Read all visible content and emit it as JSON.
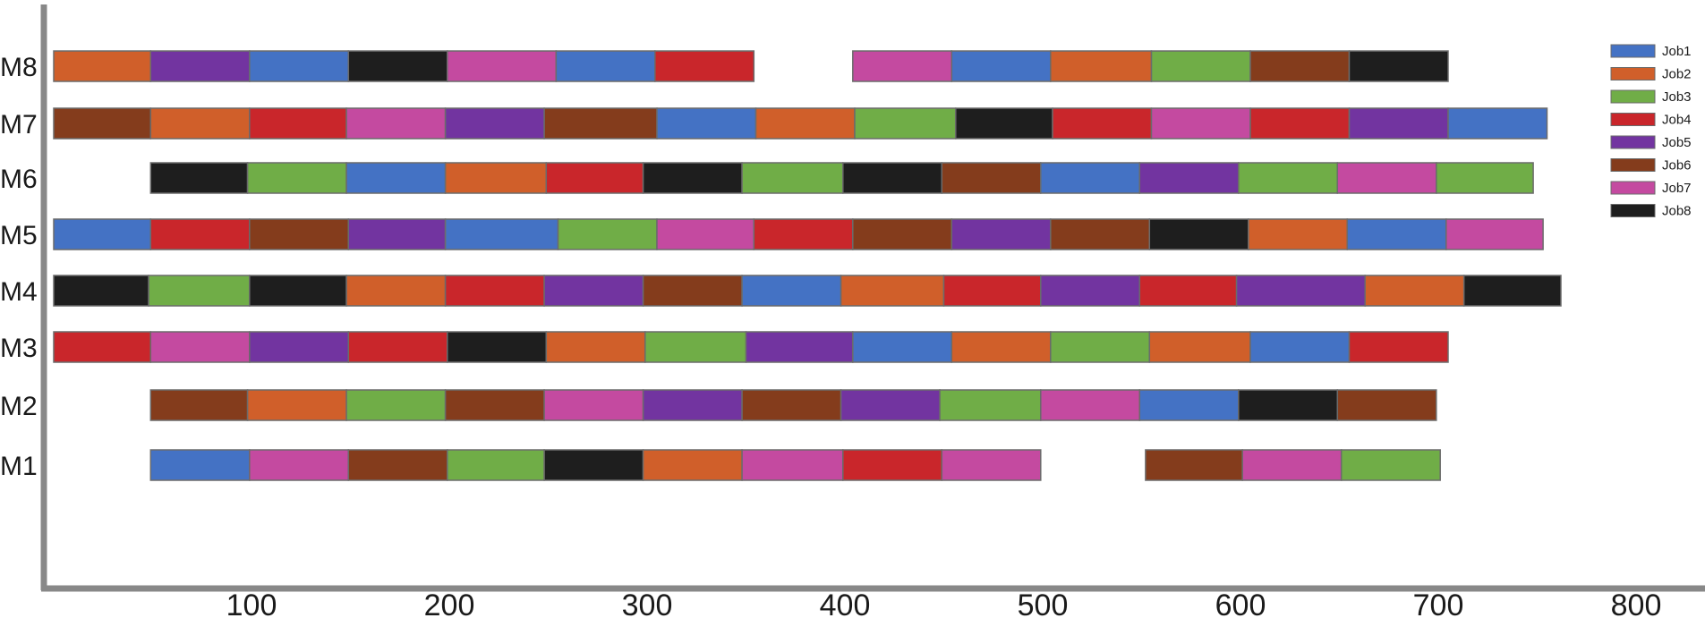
{
  "chart_data": {
    "type": "gantt",
    "title": "",
    "xlabel": "",
    "ylabel": "",
    "xlim": [
      0,
      850
    ],
    "x_ticks": [
      100,
      200,
      300,
      400,
      500,
      600,
      700,
      800
    ],
    "machines": [
      "M1",
      "M2",
      "M3",
      "M4",
      "M5",
      "M6",
      "M7",
      "M8"
    ],
    "legend_placement": "top-right",
    "grid": false,
    "jobs": [
      {
        "name": "Job1",
        "color": "#4472C4"
      },
      {
        "name": "Job2",
        "color": "#D05F2A"
      },
      {
        "name": "Job3",
        "color": "#70AD47"
      },
      {
        "name": "Job4",
        "color": "#C9262B"
      },
      {
        "name": "Job5",
        "color": "#7234A0"
      },
      {
        "name": "Job6",
        "color": "#843C1C"
      },
      {
        "name": "Job7",
        "color": "#C44AA0"
      },
      {
        "name": "Job8",
        "color": "#1E1E1E"
      }
    ],
    "tasks": [
      {
        "machine": "M8",
        "job": "Job2",
        "start": 0,
        "end": 49
      },
      {
        "machine": "M8",
        "job": "Job5",
        "start": 49,
        "end": 99
      },
      {
        "machine": "M8",
        "job": "Job1",
        "start": 99,
        "end": 149
      },
      {
        "machine": "M8",
        "job": "Job8",
        "start": 149,
        "end": 199
      },
      {
        "machine": "M8",
        "job": "Job7",
        "start": 199,
        "end": 254
      },
      {
        "machine": "M8",
        "job": "Job1",
        "start": 254,
        "end": 304
      },
      {
        "machine": "M8",
        "job": "Job4",
        "start": 304,
        "end": 354
      },
      {
        "machine": "M8",
        "job": "Job7",
        "start": 404,
        "end": 454
      },
      {
        "machine": "M8",
        "job": "Job1",
        "start": 454,
        "end": 504
      },
      {
        "machine": "M8",
        "job": "Job2",
        "start": 504,
        "end": 555
      },
      {
        "machine": "M8",
        "job": "Job3",
        "start": 555,
        "end": 605
      },
      {
        "machine": "M8",
        "job": "Job6",
        "start": 605,
        "end": 655
      },
      {
        "machine": "M8",
        "job": "Job8",
        "start": 655,
        "end": 705
      },
      {
        "machine": "M7",
        "job": "Job6",
        "start": 0,
        "end": 49
      },
      {
        "machine": "M7",
        "job": "Job2",
        "start": 49,
        "end": 99
      },
      {
        "machine": "M7",
        "job": "Job4",
        "start": 99,
        "end": 148
      },
      {
        "machine": "M7",
        "job": "Job7",
        "start": 148,
        "end": 198
      },
      {
        "machine": "M7",
        "job": "Job5",
        "start": 198,
        "end": 248
      },
      {
        "machine": "M7",
        "job": "Job6",
        "start": 248,
        "end": 305
      },
      {
        "machine": "M7",
        "job": "Job1",
        "start": 305,
        "end": 355
      },
      {
        "machine": "M7",
        "job": "Job2",
        "start": 355,
        "end": 405
      },
      {
        "machine": "M7",
        "job": "Job3",
        "start": 405,
        "end": 456
      },
      {
        "machine": "M7",
        "job": "Job8",
        "start": 456,
        "end": 505
      },
      {
        "machine": "M7",
        "job": "Job4",
        "start": 505,
        "end": 555
      },
      {
        "machine": "M7",
        "job": "Job7",
        "start": 555,
        "end": 605
      },
      {
        "machine": "M7",
        "job": "Job4",
        "start": 605,
        "end": 655
      },
      {
        "machine": "M7",
        "job": "Job5",
        "start": 655,
        "end": 705
      },
      {
        "machine": "M7",
        "job": "Job1",
        "start": 705,
        "end": 755
      },
      {
        "machine": "M6",
        "job": "Job8",
        "start": 49,
        "end": 98
      },
      {
        "machine": "M6",
        "job": "Job3",
        "start": 98,
        "end": 148
      },
      {
        "machine": "M6",
        "job": "Job1",
        "start": 148,
        "end": 198
      },
      {
        "machine": "M6",
        "job": "Job2",
        "start": 198,
        "end": 249
      },
      {
        "machine": "M6",
        "job": "Job4",
        "start": 249,
        "end": 298
      },
      {
        "machine": "M6",
        "job": "Job8",
        "start": 298,
        "end": 348
      },
      {
        "machine": "M6",
        "job": "Job3",
        "start": 348,
        "end": 399
      },
      {
        "machine": "M6",
        "job": "Job8",
        "start": 399,
        "end": 449
      },
      {
        "machine": "M6",
        "job": "Job6",
        "start": 449,
        "end": 499
      },
      {
        "machine": "M6",
        "job": "Job1",
        "start": 499,
        "end": 549
      },
      {
        "machine": "M6",
        "job": "Job5",
        "start": 549,
        "end": 599
      },
      {
        "machine": "M6",
        "job": "Job3",
        "start": 599,
        "end": 649
      },
      {
        "machine": "M6",
        "job": "Job7",
        "start": 649,
        "end": 699
      },
      {
        "machine": "M6",
        "job": "Job3",
        "start": 699,
        "end": 748
      },
      {
        "machine": "M5",
        "job": "Job1",
        "start": 0,
        "end": 49
      },
      {
        "machine": "M5",
        "job": "Job4",
        "start": 49,
        "end": 99
      },
      {
        "machine": "M5",
        "job": "Job6",
        "start": 99,
        "end": 149
      },
      {
        "machine": "M5",
        "job": "Job5",
        "start": 149,
        "end": 198
      },
      {
        "machine": "M5",
        "job": "Job1",
        "start": 198,
        "end": 255
      },
      {
        "machine": "M5",
        "job": "Job3",
        "start": 255,
        "end": 305
      },
      {
        "machine": "M5",
        "job": "Job7",
        "start": 305,
        "end": 354
      },
      {
        "machine": "M5",
        "job": "Job4",
        "start": 354,
        "end": 404
      },
      {
        "machine": "M5",
        "job": "Job6",
        "start": 404,
        "end": 454
      },
      {
        "machine": "M5",
        "job": "Job5",
        "start": 454,
        "end": 504
      },
      {
        "machine": "M5",
        "job": "Job6",
        "start": 504,
        "end": 554
      },
      {
        "machine": "M5",
        "job": "Job8",
        "start": 554,
        "end": 604
      },
      {
        "machine": "M5",
        "job": "Job2",
        "start": 604,
        "end": 654
      },
      {
        "machine": "M5",
        "job": "Job1",
        "start": 654,
        "end": 704
      },
      {
        "machine": "M5",
        "job": "Job7",
        "start": 704,
        "end": 753
      },
      {
        "machine": "M4",
        "job": "Job8",
        "start": 0,
        "end": 48
      },
      {
        "machine": "M4",
        "job": "Job3",
        "start": 48,
        "end": 99
      },
      {
        "machine": "M4",
        "job": "Job8",
        "start": 99,
        "end": 148
      },
      {
        "machine": "M4",
        "job": "Job2",
        "start": 148,
        "end": 198
      },
      {
        "machine": "M4",
        "job": "Job4",
        "start": 198,
        "end": 248
      },
      {
        "machine": "M4",
        "job": "Job5",
        "start": 248,
        "end": 298
      },
      {
        "machine": "M4",
        "job": "Job6",
        "start": 298,
        "end": 348
      },
      {
        "machine": "M4",
        "job": "Job1",
        "start": 348,
        "end": 398
      },
      {
        "machine": "M4",
        "job": "Job2",
        "start": 398,
        "end": 450
      },
      {
        "machine": "M4",
        "job": "Job4",
        "start": 450,
        "end": 499
      },
      {
        "machine": "M4",
        "job": "Job5",
        "start": 499,
        "end": 549
      },
      {
        "machine": "M4",
        "job": "Job4",
        "start": 549,
        "end": 598
      },
      {
        "machine": "M4",
        "job": "Job5",
        "start": 598,
        "end": 663
      },
      {
        "machine": "M4",
        "job": "Job2",
        "start": 663,
        "end": 713
      },
      {
        "machine": "M4",
        "job": "Job8",
        "start": 713,
        "end": 762
      },
      {
        "machine": "M3",
        "job": "Job4",
        "start": 0,
        "end": 49
      },
      {
        "machine": "M3",
        "job": "Job7",
        "start": 49,
        "end": 99
      },
      {
        "machine": "M3",
        "job": "Job5",
        "start": 99,
        "end": 149
      },
      {
        "machine": "M3",
        "job": "Job4",
        "start": 149,
        "end": 199
      },
      {
        "machine": "M3",
        "job": "Job8",
        "start": 199,
        "end": 249
      },
      {
        "machine": "M3",
        "job": "Job2",
        "start": 249,
        "end": 299
      },
      {
        "machine": "M3",
        "job": "Job3",
        "start": 299,
        "end": 350
      },
      {
        "machine": "M3",
        "job": "Job5",
        "start": 350,
        "end": 404
      },
      {
        "machine": "M3",
        "job": "Job1",
        "start": 404,
        "end": 454
      },
      {
        "machine": "M3",
        "job": "Job2",
        "start": 454,
        "end": 504
      },
      {
        "machine": "M3",
        "job": "Job3",
        "start": 504,
        "end": 554
      },
      {
        "machine": "M3",
        "job": "Job2",
        "start": 554,
        "end": 605
      },
      {
        "machine": "M3",
        "job": "Job1",
        "start": 605,
        "end": 655
      },
      {
        "machine": "M3",
        "job": "Job4",
        "start": 655,
        "end": 705
      },
      {
        "machine": "M2",
        "job": "Job6",
        "start": 49,
        "end": 98
      },
      {
        "machine": "M2",
        "job": "Job2",
        "start": 98,
        "end": 148
      },
      {
        "machine": "M2",
        "job": "Job3",
        "start": 148,
        "end": 198
      },
      {
        "machine": "M2",
        "job": "Job6",
        "start": 198,
        "end": 248
      },
      {
        "machine": "M2",
        "job": "Job7",
        "start": 248,
        "end": 298
      },
      {
        "machine": "M2",
        "job": "Job5",
        "start": 298,
        "end": 348
      },
      {
        "machine": "M2",
        "job": "Job6",
        "start": 348,
        "end": 398
      },
      {
        "machine": "M2",
        "job": "Job5",
        "start": 398,
        "end": 448
      },
      {
        "machine": "M2",
        "job": "Job3",
        "start": 448,
        "end": 499
      },
      {
        "machine": "M2",
        "job": "Job7",
        "start": 499,
        "end": 549
      },
      {
        "machine": "M2",
        "job": "Job1",
        "start": 549,
        "end": 599
      },
      {
        "machine": "M2",
        "job": "Job8",
        "start": 599,
        "end": 649
      },
      {
        "machine": "M2",
        "job": "Job6",
        "start": 649,
        "end": 699
      },
      {
        "machine": "M1",
        "job": "Job1",
        "start": 49,
        "end": 99
      },
      {
        "machine": "M1",
        "job": "Job7",
        "start": 99,
        "end": 149
      },
      {
        "machine": "M1",
        "job": "Job6",
        "start": 149,
        "end": 199
      },
      {
        "machine": "M1",
        "job": "Job3",
        "start": 199,
        "end": 248
      },
      {
        "machine": "M1",
        "job": "Job8",
        "start": 248,
        "end": 298
      },
      {
        "machine": "M1",
        "job": "Job2",
        "start": 298,
        "end": 348
      },
      {
        "machine": "M1",
        "job": "Job7",
        "start": 348,
        "end": 399
      },
      {
        "machine": "M1",
        "job": "Job4",
        "start": 399,
        "end": 449
      },
      {
        "machine": "M1",
        "job": "Job7",
        "start": 449,
        "end": 499
      },
      {
        "machine": "M1",
        "job": "Job6",
        "start": 552,
        "end": 601
      },
      {
        "machine": "M1",
        "job": "Job7",
        "start": 601,
        "end": 651
      },
      {
        "machine": "M1",
        "job": "Job3",
        "start": 651,
        "end": 701
      }
    ]
  }
}
